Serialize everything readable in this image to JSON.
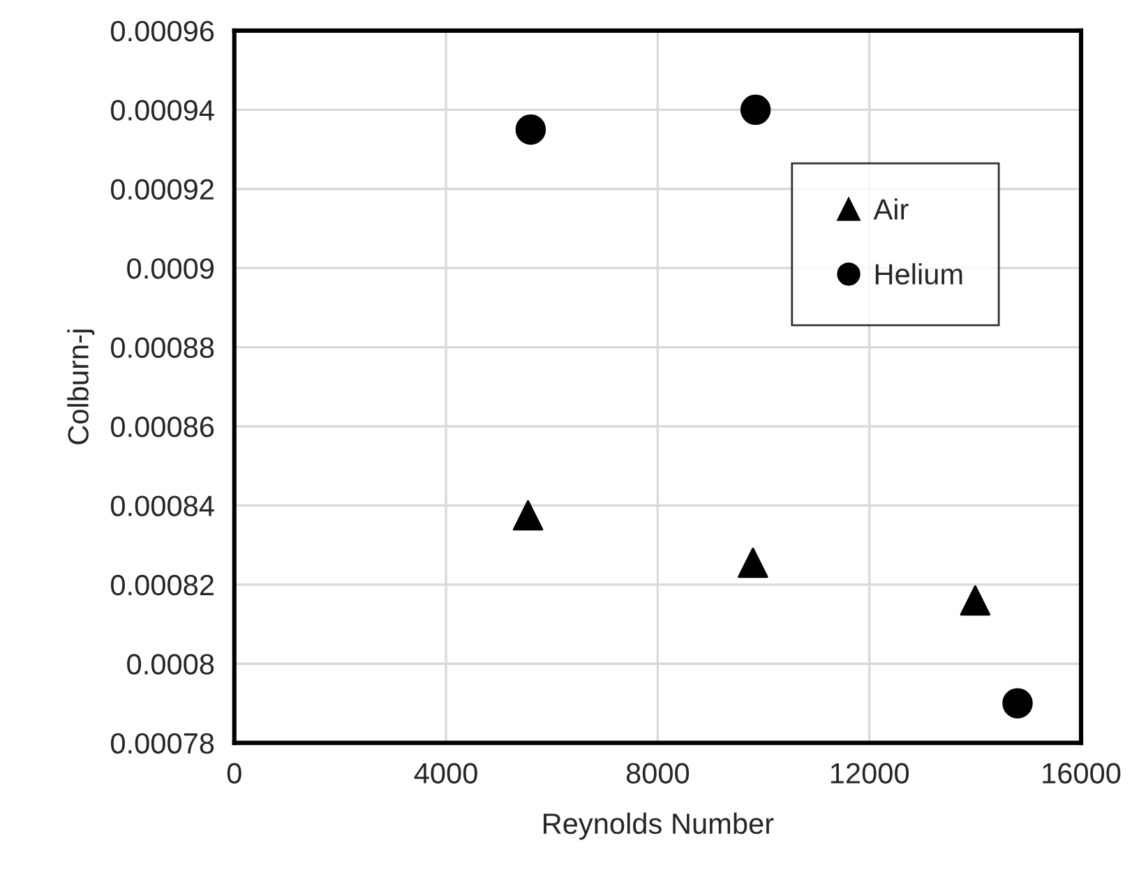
{
  "chart_data": {
    "type": "scatter",
    "xlabel": "Reynolds Number",
    "ylabel": "Colburn-j",
    "series": [
      {
        "name": "Air",
        "color": "#000000",
        "marker": "triangle",
        "x": [
          5550,
          9800,
          14000
        ],
        "values": [
          0.0008375,
          0.0008255,
          0.000816
        ]
      },
      {
        "name": "Helium",
        "color": "#000000",
        "marker": "circle",
        "x": [
          5600,
          9850,
          14800
        ],
        "values": [
          0.000935,
          0.00094,
          0.00079
        ]
      }
    ],
    "xlim": [
      0,
      16000
    ],
    "xticks": [
      0,
      4000,
      8000,
      12000,
      16000
    ],
    "ylim": [
      0.00078,
      0.00096
    ],
    "yticks": [
      0.00078,
      0.0008,
      0.00082,
      0.00084,
      0.00086,
      0.00088,
      0.0009,
      0.00092,
      0.00094,
      0.00096
    ],
    "grid": true,
    "legend": "right"
  }
}
